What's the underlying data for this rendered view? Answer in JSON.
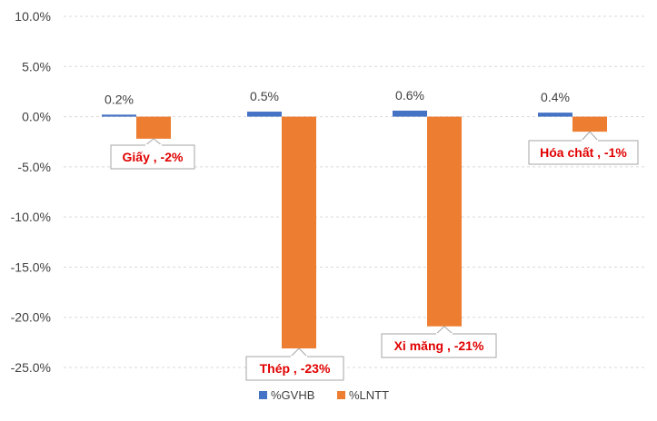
{
  "chart_data": {
    "type": "bar",
    "categories": [
      "Giấy",
      "Thép",
      "Xi măng",
      "Hóa chất"
    ],
    "series": [
      {
        "name": "%GVHB",
        "values": [
          0.2,
          0.5,
          0.6,
          0.4
        ],
        "color": "#4472c4"
      },
      {
        "name": "%LNTT",
        "values": [
          -2.2,
          -23.1,
          -20.9,
          -1.5
        ],
        "color": "#ed7d31"
      }
    ],
    "data_labels_gvhb": [
      "0.2%",
      "0.5%",
      "0.6%",
      "0.4%"
    ],
    "callout_labels": [
      "Giấy , -2%",
      "Thép , -23%",
      "Xi măng , -21%",
      "Hóa chất , -1%"
    ],
    "y_ticks": [
      "10.0%",
      "5.0%",
      "0.0%",
      "-5.0%",
      "-10.0%",
      "-15.0%",
      "-20.0%",
      "-25.0%"
    ],
    "ylim": [
      -25,
      10
    ],
    "grid": true,
    "legend_position": "bottom"
  }
}
